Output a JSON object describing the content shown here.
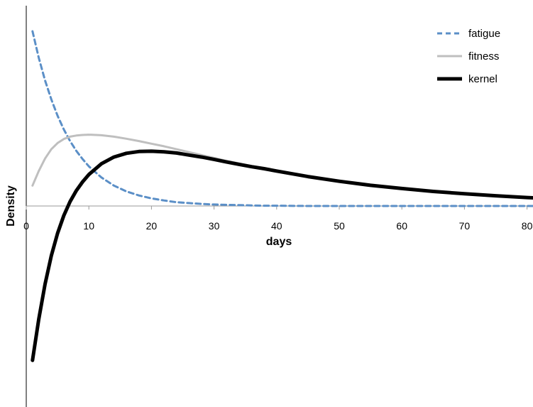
{
  "chart_data": {
    "type": "line",
    "xlabel": "days",
    "ylabel": "Density",
    "xlim": [
      0,
      81
    ],
    "ylim": [
      -0.55,
      0.65
    ],
    "x_ticks": [
      0,
      10,
      20,
      30,
      40,
      50,
      60,
      70,
      80
    ],
    "x_tick_labels": [
      "0",
      "10",
      "20",
      "30",
      "40",
      "50",
      "60",
      "70",
      "80"
    ],
    "grid": false,
    "legend_position": "top-right",
    "x": [
      1,
      2,
      3,
      4,
      5,
      6,
      7,
      8,
      9,
      10,
      12,
      14,
      16,
      18,
      20,
      22,
      24,
      26,
      28,
      30,
      32,
      34,
      36,
      38,
      40,
      45,
      50,
      55,
      60,
      65,
      70,
      75,
      80,
      81
    ],
    "series": [
      {
        "name": "fatigue",
        "color": "#5b8fc7",
        "style": "dashed",
        "values": [
          0.6,
          0.509,
          0.431,
          0.366,
          0.31,
          0.263,
          0.223,
          0.189,
          0.161,
          0.136,
          0.098,
          0.07,
          0.05,
          0.036,
          0.026,
          0.019,
          0.013,
          0.01,
          0.007,
          0.005,
          0.004,
          0.003,
          0.002,
          0.001,
          0.001,
          0,
          0,
          0,
          0,
          0,
          0,
          0,
          0,
          0
        ]
      },
      {
        "name": "fitness",
        "color": "#bfbfbf",
        "style": "solid",
        "values": [
          0.07,
          0.12,
          0.163,
          0.195,
          0.216,
          0.23,
          0.238,
          0.242,
          0.244,
          0.245,
          0.243,
          0.238,
          0.231,
          0.223,
          0.214,
          0.205,
          0.195,
          0.185,
          0.175,
          0.165,
          0.155,
          0.146,
          0.137,
          0.129,
          0.121,
          0.101,
          0.085,
          0.071,
          0.06,
          0.05,
          0.042,
          0.035,
          0.029,
          0.028
        ]
      },
      {
        "name": "kernel",
        "color": "#000000",
        "style": "solid",
        "values": [
          -0.53,
          -0.389,
          -0.268,
          -0.171,
          -0.094,
          -0.033,
          0.015,
          0.053,
          0.083,
          0.108,
          0.145,
          0.168,
          0.181,
          0.187,
          0.188,
          0.186,
          0.182,
          0.175,
          0.168,
          0.16,
          0.151,
          0.143,
          0.135,
          0.128,
          0.12,
          0.101,
          0.085,
          0.071,
          0.06,
          0.05,
          0.042,
          0.035,
          0.029,
          0.028
        ]
      }
    ]
  }
}
